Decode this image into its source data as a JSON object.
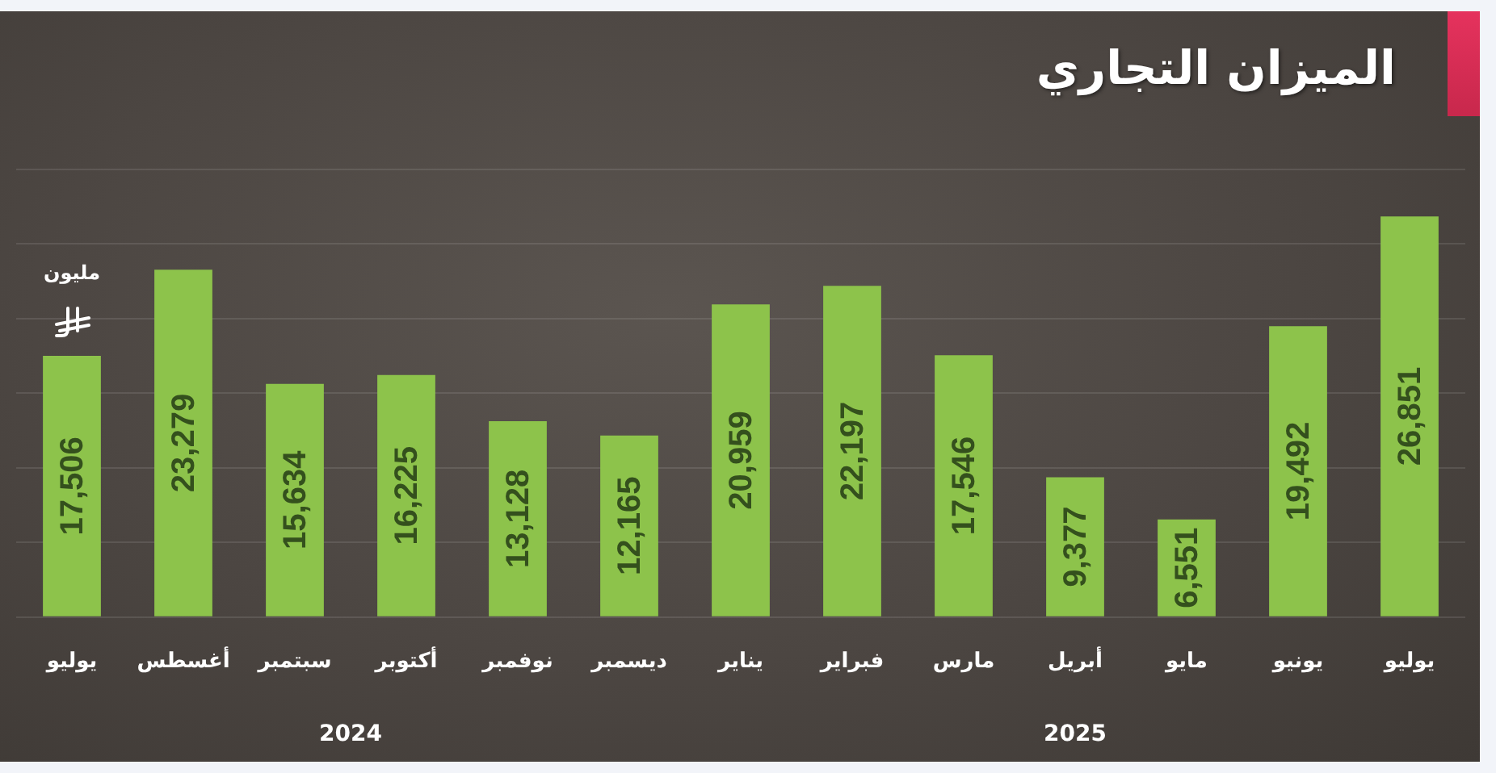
{
  "chart_data": {
    "type": "bar",
    "title": "الميزان التجاري",
    "ylabel": "مليون",
    "categories": [
      "يوليو",
      "أغسطس",
      "سبتمبر",
      "أكتوبر",
      "نوفمبر",
      "ديسمبر",
      "يناير",
      "فبراير",
      "مارس",
      "أبريل",
      "مايو",
      "يونيو",
      "يوليو"
    ],
    "values": [
      17506,
      23279,
      15634,
      16225,
      13128,
      12165,
      20959,
      22197,
      17546,
      9377,
      6551,
      19492,
      26851
    ],
    "value_labels": [
      "17,506",
      "23,279",
      "15,634",
      "16,225",
      "13,128",
      "12,165",
      "20,959",
      "22,197",
      "17,546",
      "9,377",
      "6,551",
      "19,492",
      "26,851"
    ],
    "color": "#8dc34b",
    "grid": "y",
    "tick_labels": "x",
    "annotations": [
      "2024",
      "2025"
    ]
  }
}
